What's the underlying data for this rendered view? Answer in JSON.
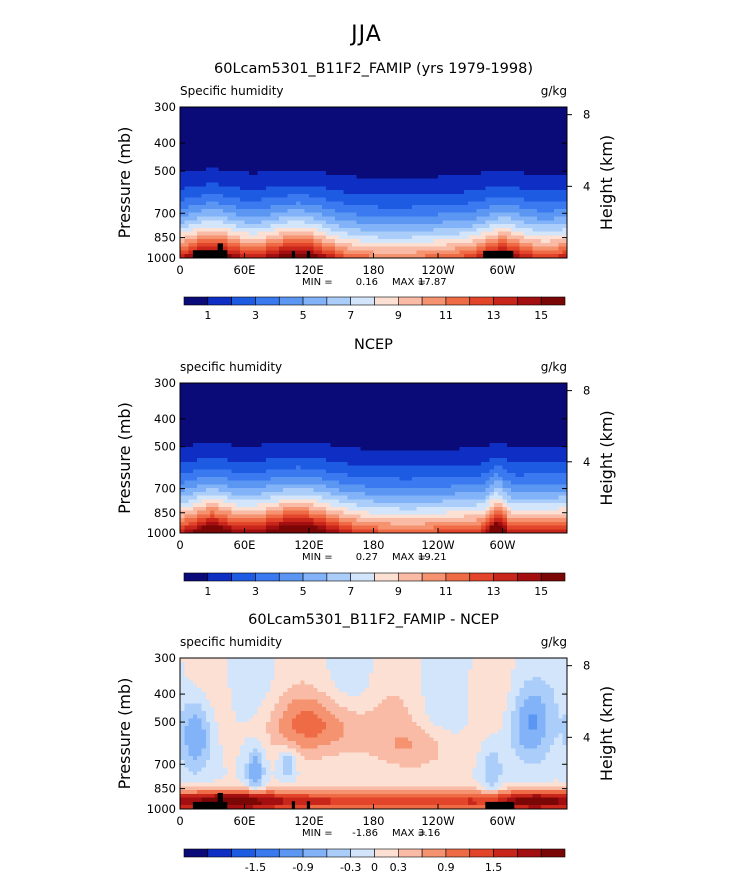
{
  "figure_title": "JJA",
  "colors": {
    "diverging_scale": [
      "#0a0a78",
      "#0f2fc4",
      "#1e5be3",
      "#3a79ef",
      "#5b96f3",
      "#82b2f7",
      "#abcdf9",
      "#d3e5fb",
      "#fbe0d3",
      "#f9bba5",
      "#f5926f",
      "#ee6b45",
      "#e2452a",
      "#c8261b",
      "#a30f10",
      "#7a0706"
    ],
    "land_mask": "#000000"
  },
  "chart_data": [
    {
      "type": "heatmap",
      "title": "60Lcam5301_B11F2_FAMIP (yrs 1979-1998)",
      "left_label": "Specific humidity",
      "right_label": "g/kg",
      "ylabel": "Pressure (mb)",
      "y2label": "Height (km)",
      "x_ticks": [
        "0",
        "60E",
        "120E",
        "180",
        "120W",
        "60W"
      ],
      "x_tick_values": [
        0,
        60,
        120,
        180,
        240,
        300
      ],
      "xlim": [
        0,
        360
      ],
      "y_ticks": [
        "300",
        "400",
        "500",
        "700",
        "850",
        "1000"
      ],
      "y_tick_values": [
        300,
        400,
        500,
        700,
        850,
        1000
      ],
      "ylim": [
        300,
        1000
      ],
      "y_scale": "log",
      "y2_ticks": [
        "8",
        "4"
      ],
      "y2_tick_values": [
        8,
        4
      ],
      "stats": {
        "min_label": "MIN =",
        "min": "0.16",
        "max_label": "MAX =",
        "max": "17.87"
      },
      "colorbar": {
        "levels": [
          0,
          1,
          2,
          3,
          4,
          5,
          6,
          7,
          8,
          9,
          10,
          11,
          12,
          13,
          14,
          15,
          16
        ],
        "labels": [
          "1",
          "3",
          "5",
          "7",
          "9",
          "11",
          "13",
          "15"
        ],
        "label_values": [
          1,
          3,
          5,
          7,
          9,
          11,
          13,
          15
        ]
      },
      "field": "model",
      "land": [
        {
          "lon0": 12,
          "lon1": 44,
          "p_top": 940
        },
        {
          "lon0": 35,
          "lon1": 40,
          "p_top": 890
        },
        {
          "lon0": 104,
          "lon1": 107,
          "p_top": 945
        },
        {
          "lon0": 118,
          "lon1": 121,
          "p_top": 945
        },
        {
          "lon0": 282,
          "lon1": 310,
          "p_top": 945
        }
      ]
    },
    {
      "type": "heatmap",
      "title": "NCEP",
      "left_label": "specific humidity",
      "right_label": "g/kg",
      "ylabel": "Pressure (mb)",
      "y2label": "Height (km)",
      "x_ticks": [
        "0",
        "60E",
        "120E",
        "180",
        "120W",
        "60W"
      ],
      "x_tick_values": [
        0,
        60,
        120,
        180,
        240,
        300
      ],
      "xlim": [
        0,
        360
      ],
      "y_ticks": [
        "300",
        "400",
        "500",
        "700",
        "850",
        "1000"
      ],
      "y_tick_values": [
        300,
        400,
        500,
        700,
        850,
        1000
      ],
      "ylim": [
        300,
        1000
      ],
      "y_scale": "log",
      "y2_ticks": [
        "8",
        "4"
      ],
      "y2_tick_values": [
        8,
        4
      ],
      "stats": {
        "min_label": "MIN =",
        "min": "0.27",
        "max_label": "MAX =",
        "max": "19.21"
      },
      "colorbar": {
        "levels": [
          0,
          1,
          2,
          3,
          4,
          5,
          6,
          7,
          8,
          9,
          10,
          11,
          12,
          13,
          14,
          15,
          16
        ],
        "labels": [
          "1",
          "3",
          "5",
          "7",
          "9",
          "11",
          "13",
          "15"
        ],
        "label_values": [
          1,
          3,
          5,
          7,
          9,
          11,
          13,
          15
        ]
      },
      "field": "obs",
      "land": []
    },
    {
      "type": "heatmap",
      "title": "60Lcam5301_B11F2_FAMIP - NCEP",
      "left_label": "specific humidity",
      "right_label": "g/kg",
      "ylabel": "Pressure (mb)",
      "y2label": "Height (km)",
      "x_ticks": [
        "0",
        "60E",
        "120E",
        "180",
        "120W",
        "60W"
      ],
      "x_tick_values": [
        0,
        60,
        120,
        180,
        240,
        300
      ],
      "xlim": [
        0,
        360
      ],
      "y_ticks": [
        "300",
        "400",
        "500",
        "700",
        "850",
        "1000"
      ],
      "y_tick_values": [
        300,
        400,
        500,
        700,
        850,
        1000
      ],
      "ylim": [
        300,
        1000
      ],
      "y_scale": "log",
      "y2_ticks": [
        "8",
        "4"
      ],
      "y2_tick_values": [
        8,
        4
      ],
      "stats": {
        "min_label": "MIN =",
        "min": "-1.86",
        "max_label": "MAX =",
        "max": "3.16"
      },
      "colorbar": {
        "levels": [
          -2.4,
          -2.1,
          -1.8,
          -1.5,
          -1.2,
          -0.9,
          -0.6,
          -0.3,
          0,
          0.3,
          0.6,
          0.9,
          1.2,
          1.5,
          1.8,
          2.1,
          2.4
        ],
        "labels": [
          "-1.5",
          "-0.9",
          "-0.3",
          "0",
          "0.3",
          "0.9",
          "1.5"
        ],
        "label_values": [
          -1.5,
          -0.9,
          -0.3,
          0,
          0.3,
          0.9,
          1.5
        ]
      },
      "field": "diff",
      "land": [
        {
          "lon0": 12,
          "lon1": 44,
          "p_top": 945
        },
        {
          "lon0": 35,
          "lon1": 40,
          "p_top": 880
        },
        {
          "lon0": 104,
          "lon1": 107,
          "p_top": 940
        },
        {
          "lon0": 118,
          "lon1": 121,
          "p_top": 940
        },
        {
          "lon0": 284,
          "lon1": 311,
          "p_top": 945
        }
      ]
    }
  ]
}
